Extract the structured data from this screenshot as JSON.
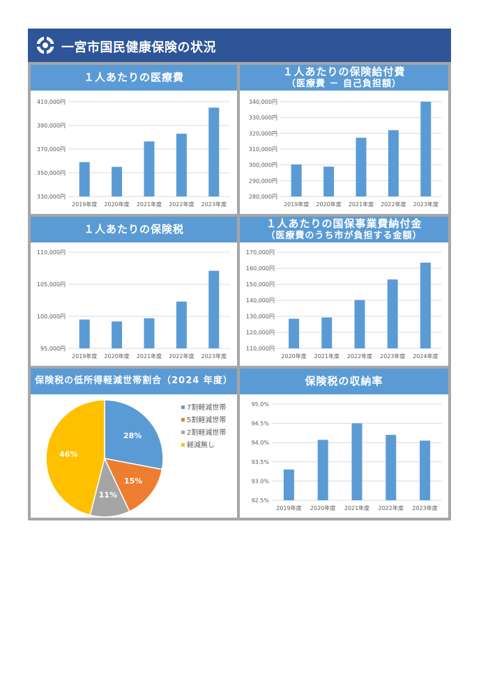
{
  "header": {
    "title": "一宮市国民健康保険の状況"
  },
  "panels": {
    "p1": {
      "title": "１人あたりの医療費",
      "subtitle": ""
    },
    "p2": {
      "title": "１人あたりの保険給付費",
      "subtitle": "（医療費 － 自己負担額）"
    },
    "p3": {
      "title": "１人あたりの保険税",
      "subtitle": ""
    },
    "p4": {
      "title": "１人あたりの国保事業費納付金",
      "subtitle": "（医療費のうち市が負担する金額）"
    },
    "p5": {
      "title": "保険税の低所得軽減世帯割合（2024 年度）",
      "subtitle": ""
    },
    "p6": {
      "title": "保険税の収納率",
      "subtitle": ""
    }
  },
  "colors": {
    "header": "#2e5597",
    "panel_title": "#5b9bd5",
    "bar": "#5b9bd5",
    "frame": "#a6a6a6"
  },
  "chart_data": [
    {
      "id": "c1",
      "type": "bar",
      "categories": [
        "2019年度",
        "2020年度",
        "2021年度",
        "2022年度",
        "2023年度"
      ],
      "values": [
        359000,
        355000,
        376500,
        383000,
        405000
      ],
      "ylim": [
        330000,
        410000
      ],
      "yticks": [
        330000,
        350000,
        370000,
        390000,
        410000
      ],
      "tick_labels": [
        "330,000円",
        "350,000円",
        "370,000円",
        "390,000円",
        "410,000円"
      ]
    },
    {
      "id": "c2",
      "type": "bar",
      "categories": [
        "2019年度",
        "2020年度",
        "2021年度",
        "2022年度",
        "2023年度"
      ],
      "values": [
        300300,
        298900,
        317200,
        322000,
        340000
      ],
      "ylim": [
        280000,
        340000
      ],
      "yticks": [
        280000,
        290000,
        300000,
        310000,
        320000,
        330000,
        340000
      ],
      "tick_labels": [
        "280,000円",
        "290,000円",
        "300,000円",
        "310,000円",
        "320,000円",
        "330,000円",
        "340,000円"
      ]
    },
    {
      "id": "c3",
      "type": "bar",
      "categories": [
        "2019年度",
        "2020年度",
        "2021年度",
        "2022年度",
        "2023年度"
      ],
      "values": [
        99500,
        99200,
        99700,
        102300,
        107100
      ],
      "ylim": [
        95000,
        110000
      ],
      "yticks": [
        95000,
        100000,
        105000,
        110000
      ],
      "tick_labels": [
        "95,000円",
        "100,000円",
        "105,000円",
        "110,000円"
      ]
    },
    {
      "id": "c4",
      "type": "bar",
      "categories": [
        "2020年度",
        "2021年度",
        "2022年度",
        "2023年度",
        "2024年度"
      ],
      "values": [
        128500,
        129300,
        140200,
        153000,
        163500
      ],
      "ylim": [
        110000,
        170000
      ],
      "yticks": [
        110000,
        120000,
        130000,
        140000,
        150000,
        160000,
        170000
      ],
      "tick_labels": [
        "110,000円",
        "120,000円",
        "130,000円",
        "140,000円",
        "150,000円",
        "160,000円",
        "170,000円"
      ]
    },
    {
      "id": "c5",
      "type": "pie",
      "labels": [
        "7割軽減世帯",
        "5割軽減世帯",
        "2割軽減世帯",
        "軽減無し"
      ],
      "values": [
        28,
        15,
        11,
        46
      ],
      "data_labels": [
        "28%",
        "15%",
        "11%",
        "46%"
      ],
      "colors": [
        "#5b9bd5",
        "#ed7d31",
        "#a5a5a5",
        "#ffc000"
      ],
      "legend": "right"
    },
    {
      "id": "c6",
      "type": "bar",
      "categories": [
        "2019年度",
        "2020年度",
        "2021年度",
        "2022年度",
        "2023年度"
      ],
      "values": [
        93.3,
        94.07,
        94.5,
        94.2,
        94.05
      ],
      "ylim": [
        92.5,
        95.0
      ],
      "yticks": [
        92.5,
        93.0,
        93.5,
        94.0,
        94.5,
        95.0
      ],
      "tick_labels": [
        "92.5%",
        "93.0%",
        "93.5%",
        "94.0%",
        "94.5%",
        "95.0%"
      ]
    }
  ]
}
